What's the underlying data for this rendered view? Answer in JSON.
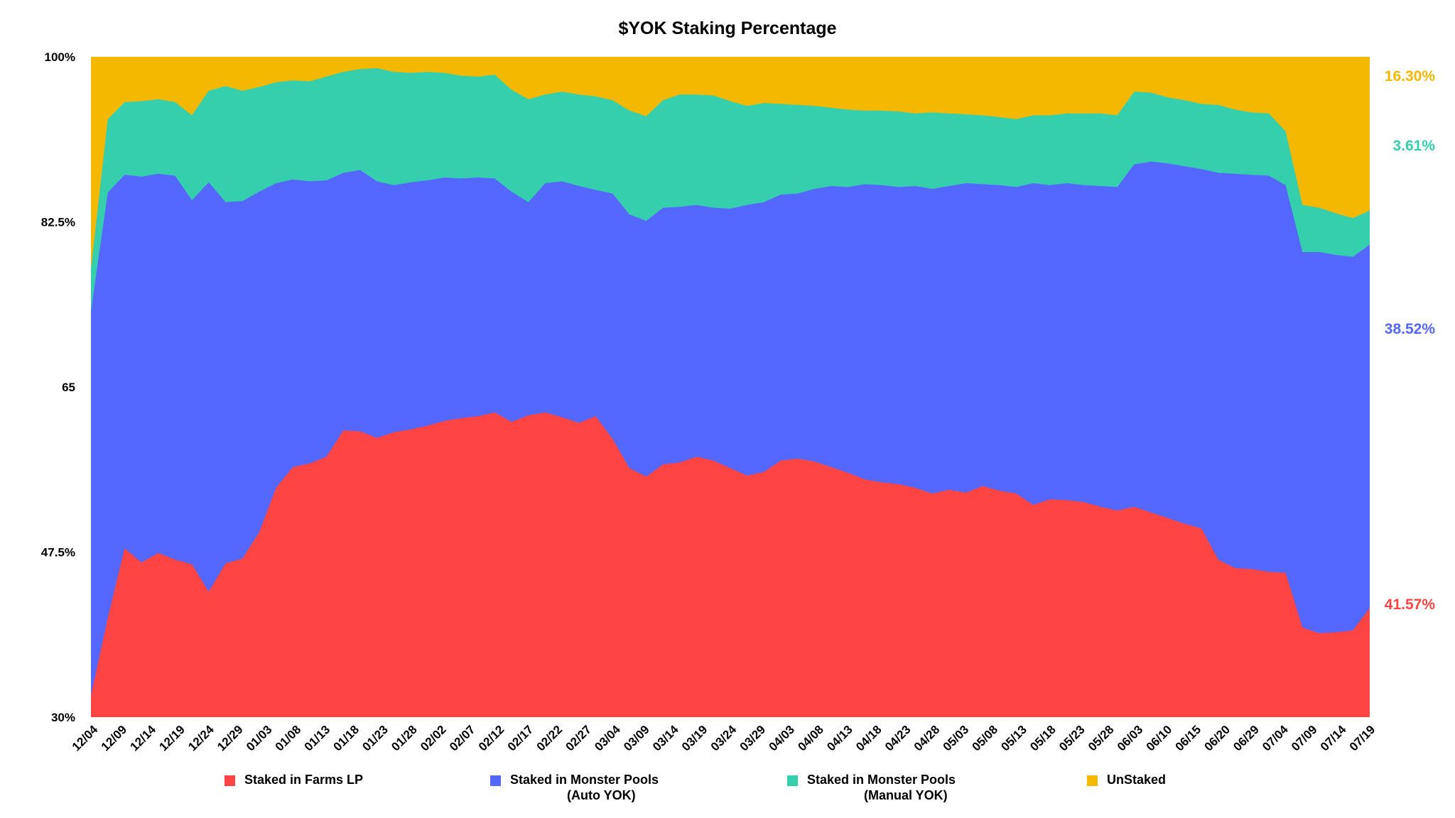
{
  "chart_data": {
    "type": "area",
    "stacked": true,
    "normalized": true,
    "title": "$YOK Staking Percentage",
    "xlabel": "",
    "ylabel": "",
    "ylim": [
      30,
      100
    ],
    "yticks": [
      "30%",
      "47.5%",
      "65",
      "82.5%",
      "100%"
    ],
    "ytick_values": [
      30,
      47.5,
      65,
      82.5,
      100
    ],
    "x_tick_labels": [
      "12/04",
      "12/09",
      "12/14",
      "12/19",
      "12/24",
      "12/29",
      "01/03",
      "01/08",
      "01/13",
      "01/18",
      "01/23",
      "01/28",
      "02/02",
      "02/07",
      "02/12",
      "02/17",
      "02/22",
      "02/27",
      "03/04",
      "03/09",
      "03/14",
      "03/19",
      "03/24",
      "03/29",
      "04/03",
      "04/08",
      "04/13",
      "04/18",
      "04/23",
      "04/28",
      "05/03",
      "05/08",
      "05/13",
      "05/18",
      "05/23",
      "05/28",
      "06/03",
      "06/10",
      "06/15",
      "06/20",
      "06/29",
      "07/04",
      "07/09",
      "07/14",
      "07/19"
    ],
    "grid": false,
    "legend_position": "bottom",
    "series": [
      {
        "name": "Staked in Farms LP",
        "color": "#ff4444",
        "end_label": "41.57%",
        "values": [
          32.3,
          40.5,
          47.9,
          46.4,
          47.4,
          46.7,
          46.2,
          43.3,
          46.3,
          46.8,
          49.6,
          54.3,
          56.5,
          56.9,
          57.6,
          60.4,
          60.3,
          59.6,
          60.2,
          60.5,
          60.9,
          61.4,
          61.7,
          61.9,
          62.3,
          61.3,
          62.0,
          62.3,
          61.8,
          61.2,
          61.9,
          59.5,
          56.4,
          55.5,
          56.8,
          57.0,
          57.6,
          57.2,
          56.4,
          55.6,
          56.0,
          57.2,
          57.4,
          57.1,
          56.5,
          55.9,
          55.2,
          54.9,
          54.7,
          54.3,
          53.7,
          54.1,
          53.8,
          54.5,
          54.0,
          53.7,
          52.5,
          53.1,
          53.0,
          52.8,
          52.3,
          51.9,
          52.3,
          51.7,
          51.1,
          50.5,
          50.0,
          46.7,
          45.8,
          45.7,
          45.4,
          45.3,
          39.5,
          38.9,
          39.0,
          39.2,
          41.57
        ]
      },
      {
        "name": "Staked in Monster Pools (Auto YOK)",
        "color": "#5468ff",
        "end_label": "38.52%",
        "values": [
          73.0,
          85.6,
          87.5,
          87.3,
          87.6,
          87.4,
          84.8,
          86.7,
          84.6,
          84.7,
          85.7,
          86.6,
          87.0,
          86.8,
          86.9,
          87.7,
          88.0,
          86.8,
          86.4,
          86.7,
          86.9,
          87.2,
          87.1,
          87.2,
          87.1,
          85.7,
          84.6,
          86.6,
          86.8,
          86.3,
          85.9,
          85.5,
          83.3,
          82.6,
          84.0,
          84.1,
          84.3,
          84.0,
          83.9,
          84.3,
          84.6,
          85.4,
          85.5,
          86.0,
          86.3,
          86.2,
          86.5,
          86.4,
          86.2,
          86.3,
          86.0,
          86.3,
          86.6,
          86.5,
          86.4,
          86.2,
          86.6,
          86.4,
          86.6,
          86.4,
          86.3,
          86.2,
          88.6,
          88.9,
          88.7,
          88.4,
          88.1,
          87.7,
          87.6,
          87.5,
          87.4,
          86.4,
          79.3,
          79.3,
          79.0,
          78.8,
          80.09
        ]
      },
      {
        "name": "Staked in Monster Pools (Manual YOK)",
        "color": "#35cfad",
        "end_label": "3.61%",
        "values": [
          77.5,
          93.4,
          95.2,
          95.3,
          95.5,
          95.2,
          93.8,
          96.4,
          96.9,
          96.4,
          96.8,
          97.3,
          97.5,
          97.4,
          97.9,
          98.4,
          98.7,
          98.8,
          98.4,
          98.3,
          98.4,
          98.3,
          98.0,
          97.9,
          98.1,
          96.5,
          95.5,
          96.0,
          96.3,
          96.0,
          95.8,
          95.4,
          94.3,
          93.7,
          95.4,
          96.0,
          96.0,
          95.9,
          95.3,
          94.8,
          95.1,
          95.0,
          94.9,
          94.8,
          94.6,
          94.4,
          94.3,
          94.3,
          94.2,
          94.0,
          94.1,
          94.0,
          93.9,
          93.8,
          93.6,
          93.4,
          93.8,
          93.8,
          94.0,
          94.0,
          94.0,
          93.8,
          96.3,
          96.2,
          95.7,
          95.4,
          95.0,
          94.9,
          94.4,
          94.1,
          94.0,
          92.1,
          84.3,
          84.0,
          83.4,
          82.9,
          83.7
        ]
      },
      {
        "name": "UnStaked",
        "color": "#f5b800",
        "end_label": "16.30%",
        "values": [
          100,
          100,
          100,
          100,
          100,
          100,
          100,
          100,
          100,
          100,
          100,
          100,
          100,
          100,
          100,
          100,
          100,
          100,
          100,
          100,
          100,
          100,
          100,
          100,
          100,
          100,
          100,
          100,
          100,
          100,
          100,
          100,
          100,
          100,
          100,
          100,
          100,
          100,
          100,
          100,
          100,
          100,
          100,
          100,
          100,
          100,
          100,
          100,
          100,
          100,
          100,
          100,
          100,
          100,
          100,
          100,
          100,
          100,
          100,
          100,
          100,
          100,
          100,
          100,
          100,
          100,
          100,
          100,
          100,
          100,
          100,
          100,
          100,
          100,
          100,
          100,
          100
        ]
      }
    ]
  }
}
